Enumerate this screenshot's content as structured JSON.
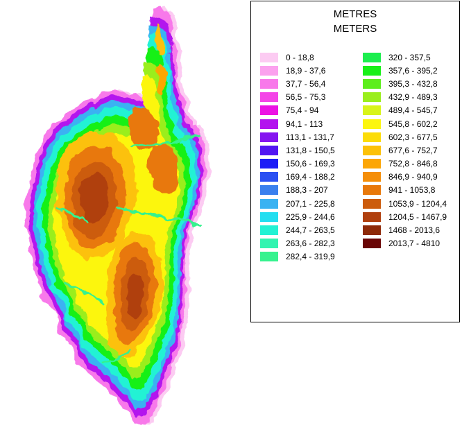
{
  "legend": {
    "title_fr": "METRES",
    "title_en": "METERS",
    "left_entries": [
      {
        "label": "0 - 18,8",
        "color": "#fccbf2"
      },
      {
        "label": "18,9 - 37,6",
        "color": "#fba1ee"
      },
      {
        "label": "37,7 - 56,4",
        "color": "#f879ea"
      },
      {
        "label": "56,5 - 75,3",
        "color": "#f444e7"
      },
      {
        "label": "75,4 - 94",
        "color": "#ec12e4"
      },
      {
        "label": "94,1 - 113",
        "color": "#b312ee"
      },
      {
        "label": "113,1 - 131,7",
        "color": "#8514f0"
      },
      {
        "label": "131,8 - 150,5",
        "color": "#5216f2"
      },
      {
        "label": "150,6 - 169,3",
        "color": "#1c1cf6"
      },
      {
        "label": "169,4 - 188,2",
        "color": "#2a50f2"
      },
      {
        "label": "188,3 - 207",
        "color": "#3a80ee"
      },
      {
        "label": "207,1 - 225,8",
        "color": "#3ab2f2"
      },
      {
        "label": "225,9 - 244,6",
        "color": "#22def0"
      },
      {
        "label": "244,7 - 263,5",
        "color": "#22f2d4"
      },
      {
        "label": "263,6 - 282,3",
        "color": "#32f4b0"
      },
      {
        "label": "282,4 - 319,9",
        "color": "#36f28e"
      }
    ],
    "right_entries": [
      {
        "label": "320 - 357,5",
        "color": "#1cee4e"
      },
      {
        "label": "357,6 - 395,2",
        "color": "#18f018"
      },
      {
        "label": "395,3 - 432,8",
        "color": "#5cee1c"
      },
      {
        "label": "432,9 - 489,3",
        "color": "#9aee1c"
      },
      {
        "label": "489,4 - 545,7",
        "color": "#d8f41a"
      },
      {
        "label": "545,8 - 602,2",
        "color": "#fcf60e"
      },
      {
        "label": "602,3 - 677,5",
        "color": "#fcdc08"
      },
      {
        "label": "677,6 - 752,7",
        "color": "#fcc108"
      },
      {
        "label": "752,8 - 846,8",
        "color": "#fca606"
      },
      {
        "label": "846,9 - 940,9",
        "color": "#f58e08"
      },
      {
        "label": "941 - 1053,8",
        "color": "#e8780a"
      },
      {
        "label": "1053,9 - 1204,4",
        "color": "#cc5c0c"
      },
      {
        "label": "1204,5 - 1467,9",
        "color": "#b0400e"
      },
      {
        "label": "1468 - 2013,6",
        "color": "#8e2a08"
      },
      {
        "label": "2013,7 - 4810",
        "color": "#6a0606"
      }
    ]
  }
}
